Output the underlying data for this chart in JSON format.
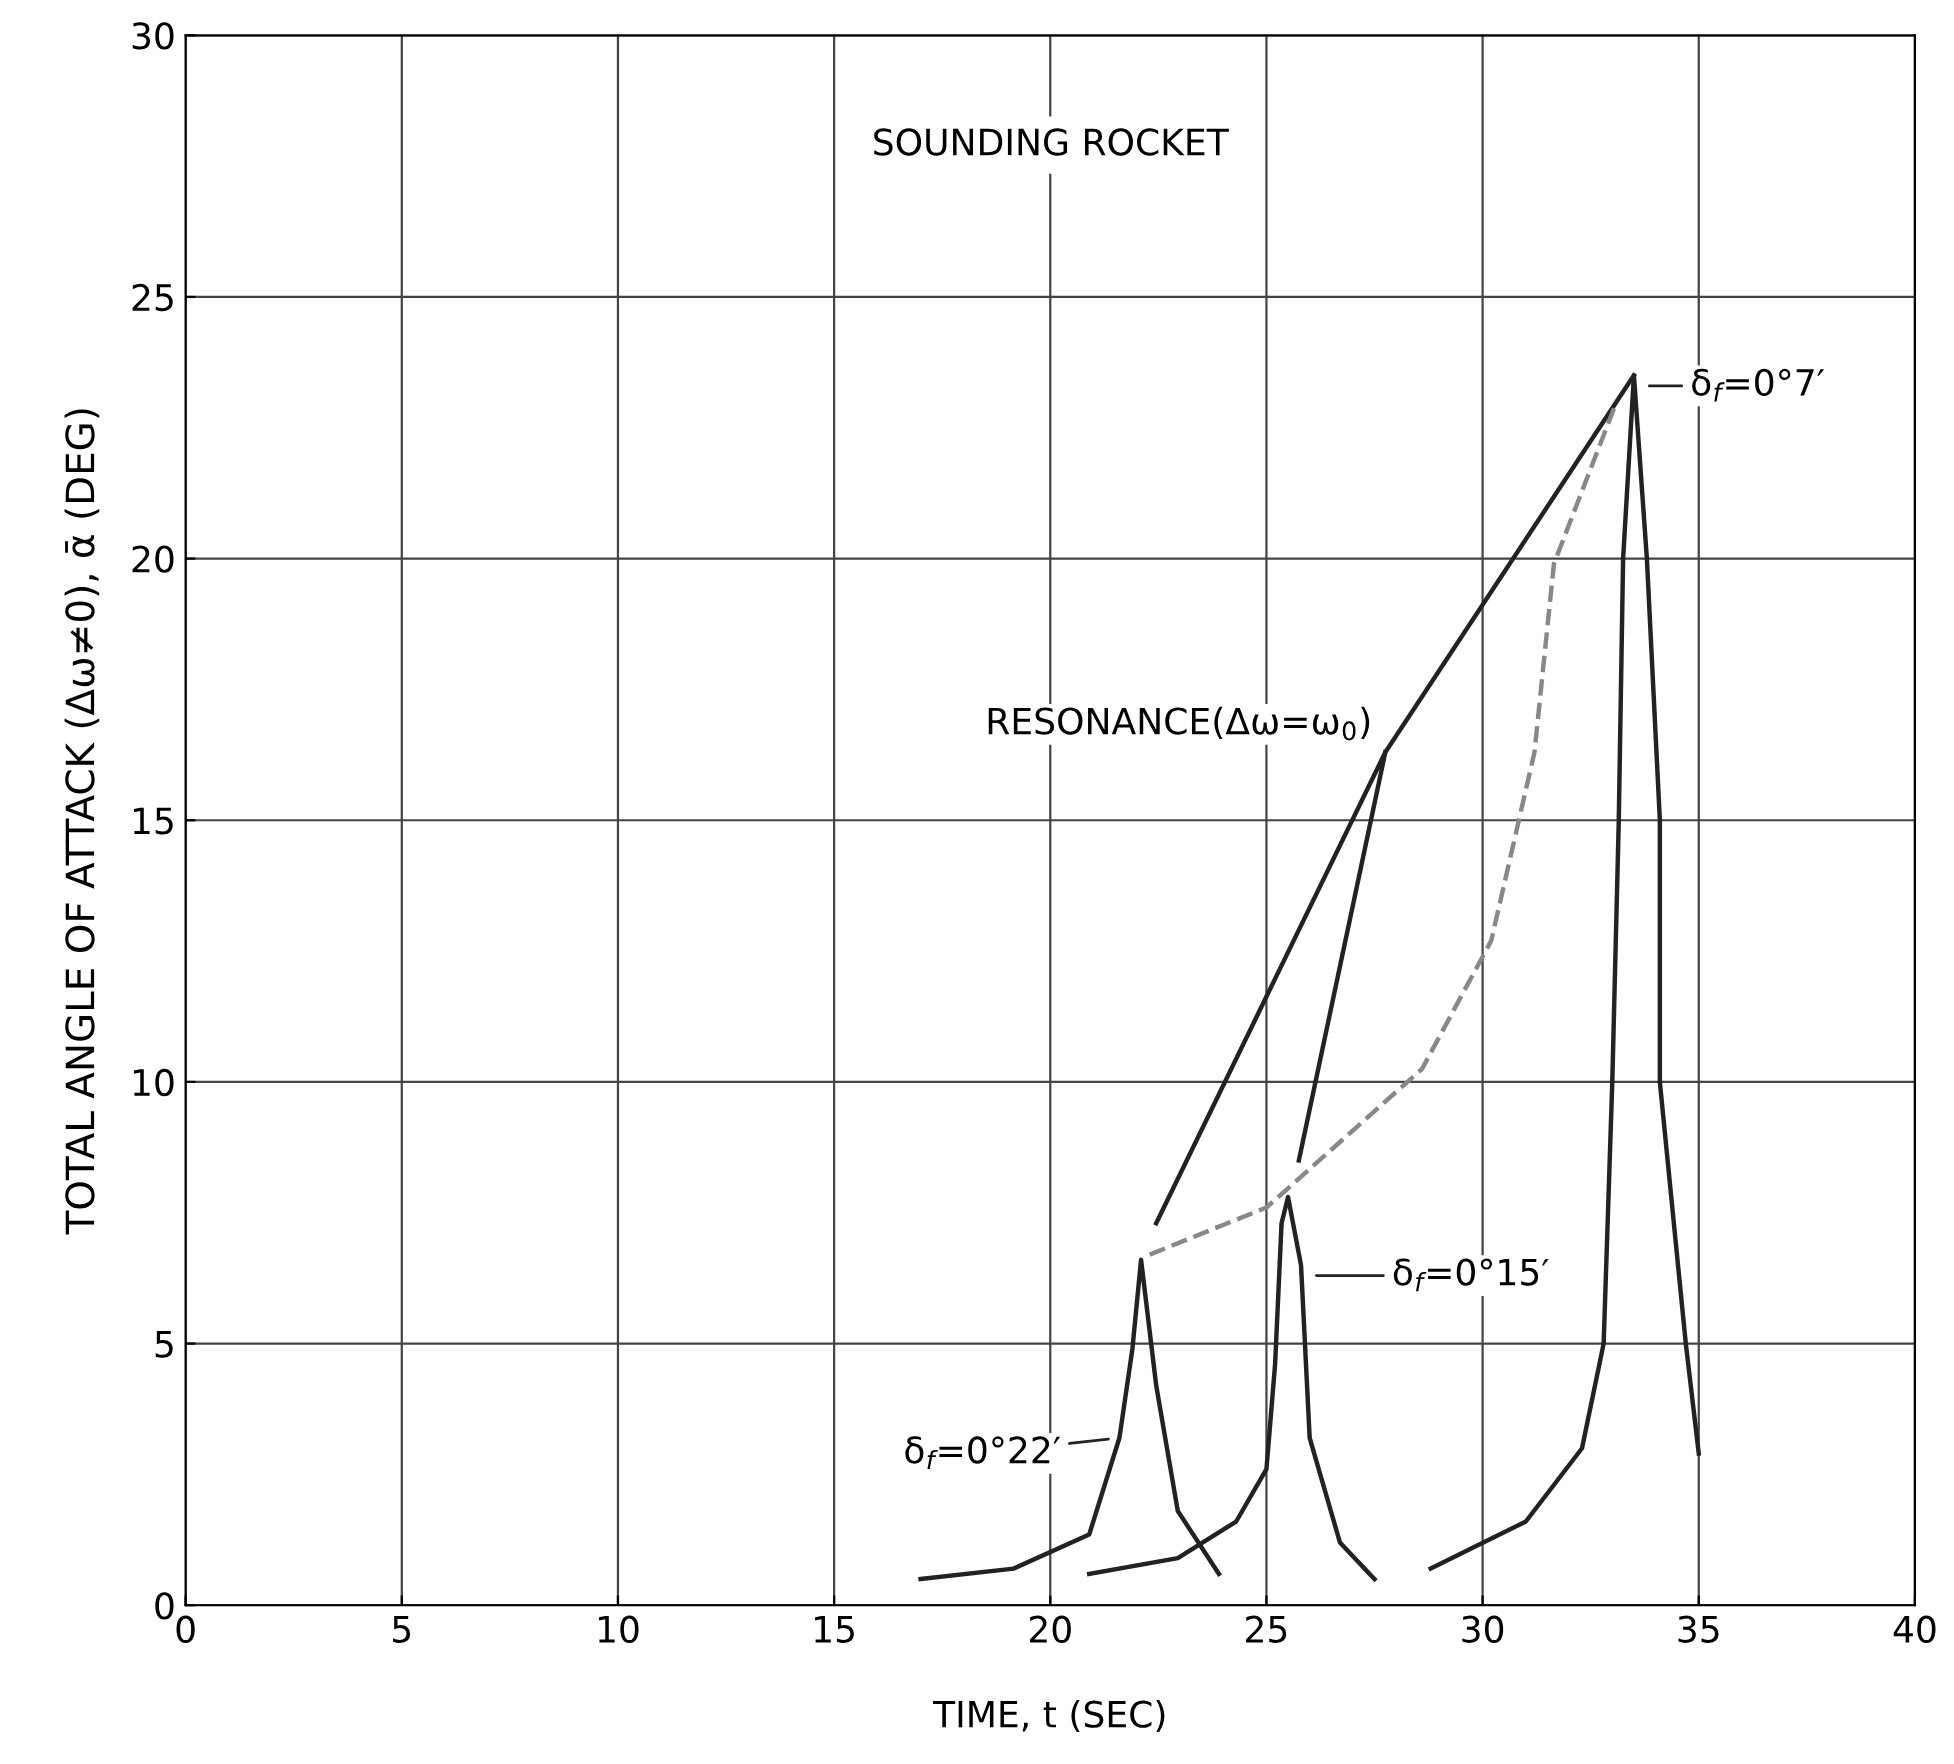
{
  "chart_data": {
    "type": "line",
    "title": "SOUNDING ROCKET",
    "xlabel": "TIME, t (SEC)",
    "ylabel": "TOTAL ANGLE OF ATTACK (Δω≠0), ᾱ (DEG)",
    "xlim": [
      0,
      40
    ],
    "ylim": [
      0,
      30
    ],
    "xticks": [
      0,
      5,
      10,
      15,
      20,
      25,
      30,
      35,
      40
    ],
    "yticks": [
      0,
      5,
      10,
      15,
      20,
      25,
      30
    ],
    "grid": true,
    "line_style": "solid",
    "marker": "none",
    "series": [
      {
        "color": "#222222",
        "x": [
          17.0,
          19.15,
          20.9,
          21.6,
          21.9,
          22.1,
          22.45,
          22.95,
          23.9
        ],
        "values": [
          0.5,
          0.7,
          1.35,
          3.2,
          4.9,
          6.6,
          4.2,
          1.8,
          0.6
        ]
      },
      {
        "color": "#222222",
        "x": [
          20.9,
          22.95,
          24.3,
          25.0,
          25.2,
          25.35,
          25.5,
          25.8,
          26.0,
          26.7,
          27.5
        ],
        "values": [
          0.6,
          0.9,
          1.6,
          2.6,
          4.6,
          7.3,
          7.8,
          6.5,
          3.2,
          1.2,
          0.5
        ]
      },
      {
        "color": "#222222",
        "x": [
          28.8,
          31.0,
          32.3,
          32.8,
          33.0,
          33.15,
          33.25,
          33.5,
          33.8,
          34.1,
          34.1,
          34.7,
          35.0
        ],
        "values": [
          0.7,
          1.6,
          3.0,
          5,
          10,
          15,
          20,
          23.5,
          20,
          15,
          10,
          5,
          2.9
        ]
      },
      {
        "color": "#222222",
        "x": [
          22.45,
          27.75,
          33.5
        ],
        "values": [
          7.3,
          16.3,
          23.5
        ]
      },
      {
        "color": "#222222",
        "x": [
          25.75,
          27.75
        ],
        "values": [
          8.5,
          16.3
        ]
      },
      {
        "color": "#888888",
        "line_style": "dashed",
        "x": [
          22.3,
          25.0,
          28.6,
          30.2,
          31.2,
          31.65,
          33.1
        ],
        "values": [
          6.7,
          7.6,
          10.25,
          12.7,
          16.3,
          19.9,
          23.0
        ]
      }
    ],
    "annotations": [
      {
        "text": "RESONANCE(Δω=ω$_{0}$)",
        "x": 27.75,
        "y": 16.3
      },
      {
        "text": "δ$_{f}$=0°7′",
        "x": 33.6,
        "y": 23.3
      },
      {
        "text": "δ$_{f}$=0°15′",
        "x": 25.9,
        "y": 6.3
      },
      {
        "text": "δ$_{f}$=0°22′",
        "x": 21.6,
        "y": 3.2
      }
    ]
  }
}
